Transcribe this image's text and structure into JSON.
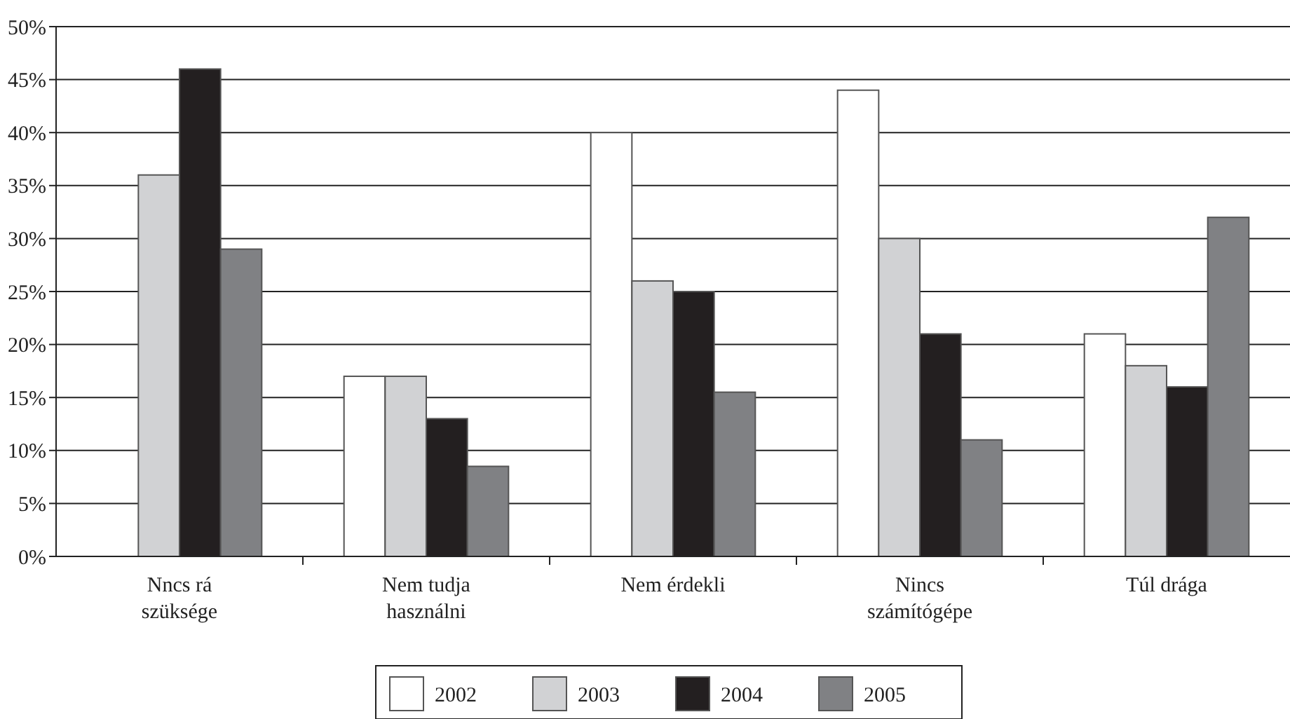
{
  "chart_data": {
    "type": "bar",
    "categories": [
      "Nncs rá szüksége",
      "Nem tudja használni",
      "Nem érdekli",
      "Nincs számítógépe",
      "Túl drága"
    ],
    "series": [
      {
        "name": "2002",
        "color": "#ffffff",
        "values": [
          null,
          17,
          40,
          44,
          21
        ]
      },
      {
        "name": "2003",
        "color": "#d1d2d4",
        "values": [
          36,
          17,
          26,
          30,
          18
        ]
      },
      {
        "name": "2004",
        "color": "#231f20",
        "values": [
          46,
          13,
          25,
          21,
          16
        ]
      },
      {
        "name": "2005",
        "color": "#808184",
        "values": [
          29,
          8.5,
          15.5,
          11,
          32
        ]
      }
    ],
    "ylim": [
      0,
      50
    ],
    "yticks": [
      {
        "value": 0,
        "label": "0%"
      },
      {
        "value": 5,
        "label": "5%"
      },
      {
        "value": 10,
        "label": "10%"
      },
      {
        "value": 15,
        "label": "15%"
      },
      {
        "value": 20,
        "label": "20%"
      },
      {
        "value": 25,
        "label": "25%"
      },
      {
        "value": 30,
        "label": "30%"
      },
      {
        "value": 35,
        "label": "35%"
      },
      {
        "value": 40,
        "label": "40%"
      },
      {
        "value": 45,
        "label": "45%"
      },
      {
        "value": 50,
        "label": "50%"
      }
    ],
    "grid": "y",
    "legend": "bottom"
  }
}
